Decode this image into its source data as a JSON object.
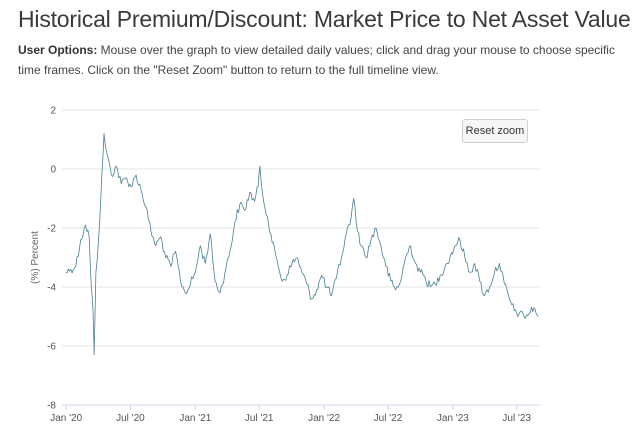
{
  "header": {
    "title": "Historical Premium/Discount: Market Price to Net Asset Value",
    "options_label": "User Options:",
    "options_text": " Mouse over the graph to view detailed daily values; click and drag your mouse to choose specific time frames. Click on the \"Reset Zoom\" button to return to the full timeline view."
  },
  "chart": {
    "reset_label": "Reset zoom",
    "line_color": "#4a7f8f"
  },
  "chart_data": {
    "type": "line",
    "title": "",
    "xlabel": "",
    "ylabel": "(%) Percent",
    "ylim": [
      -8,
      2
    ],
    "yticks": [
      2,
      0,
      -2,
      -4,
      -6,
      -8
    ],
    "xlim": [
      "2019-12-20",
      "2023-09-05"
    ],
    "xticks": [
      {
        "date": "2020-01-01",
        "label": "Jan '20"
      },
      {
        "date": "2020-07-01",
        "label": "Jul '20"
      },
      {
        "date": "2021-01-01",
        "label": "Jan '21"
      },
      {
        "date": "2021-07-01",
        "label": "Jul '21"
      },
      {
        "date": "2022-01-01",
        "label": "Jan '22"
      },
      {
        "date": "2022-07-01",
        "label": "Jul '22"
      },
      {
        "date": "2023-01-01",
        "label": "Jan '23"
      },
      {
        "date": "2023-07-01",
        "label": "Jul '23"
      }
    ],
    "grid": true,
    "legend": "none",
    "series": [
      {
        "points": [
          [
            "2019-12-31",
            -3.5
          ],
          [
            "2020-01-14",
            -3.4
          ],
          [
            "2020-01-28",
            -3.3
          ],
          [
            "2020-02-11",
            -2.4
          ],
          [
            "2020-02-25",
            -1.9
          ],
          [
            "2020-03-06",
            -2.3
          ],
          [
            "2020-03-12",
            -4.0
          ],
          [
            "2020-03-17",
            -4.8
          ],
          [
            "2020-03-20",
            -6.3
          ],
          [
            "2020-03-25",
            -3.5
          ],
          [
            "2020-04-01",
            -2.5
          ],
          [
            "2020-04-08",
            -1.0
          ],
          [
            "2020-04-14",
            0.4
          ],
          [
            "2020-04-17",
            1.2
          ],
          [
            "2020-04-24",
            0.6
          ],
          [
            "2020-05-08",
            -0.2
          ],
          [
            "2020-05-22",
            0.1
          ],
          [
            "2020-06-05",
            -0.5
          ],
          [
            "2020-06-19",
            -0.3
          ],
          [
            "2020-07-03",
            -0.6
          ],
          [
            "2020-07-17",
            -0.2
          ],
          [
            "2020-07-31",
            -0.7
          ],
          [
            "2020-08-14",
            -1.3
          ],
          [
            "2020-08-28",
            -2.1
          ],
          [
            "2020-09-11",
            -2.6
          ],
          [
            "2020-09-25",
            -2.3
          ],
          [
            "2020-10-09",
            -3.0
          ],
          [
            "2020-10-23",
            -3.3
          ],
          [
            "2020-11-06",
            -2.8
          ],
          [
            "2020-11-20",
            -3.8
          ],
          [
            "2020-12-04",
            -4.2
          ],
          [
            "2020-12-18",
            -3.9
          ],
          [
            "2021-01-01",
            -3.5
          ],
          [
            "2021-01-15",
            -2.6
          ],
          [
            "2021-01-29",
            -3.2
          ],
          [
            "2021-02-12",
            -2.2
          ],
          [
            "2021-02-26",
            -3.8
          ],
          [
            "2021-03-12",
            -4.2
          ],
          [
            "2021-03-26",
            -3.5
          ],
          [
            "2021-04-09",
            -2.8
          ],
          [
            "2021-04-23",
            -1.8
          ],
          [
            "2021-05-07",
            -1.2
          ],
          [
            "2021-05-21",
            -1.4
          ],
          [
            "2021-06-04",
            -0.8
          ],
          [
            "2021-06-18",
            -1.1
          ],
          [
            "2021-06-28",
            -0.6
          ],
          [
            "2021-07-03",
            0.1
          ],
          [
            "2021-07-10",
            -0.8
          ],
          [
            "2021-07-24",
            -1.6
          ],
          [
            "2021-08-07",
            -2.5
          ],
          [
            "2021-08-21",
            -3.1
          ],
          [
            "2021-09-04",
            -3.8
          ],
          [
            "2021-09-18",
            -3.6
          ],
          [
            "2021-10-02",
            -3.2
          ],
          [
            "2021-10-16",
            -3.0
          ],
          [
            "2021-10-30",
            -3.5
          ],
          [
            "2021-11-13",
            -3.9
          ],
          [
            "2021-11-27",
            -4.4
          ],
          [
            "2021-12-11",
            -4.1
          ],
          [
            "2021-12-25",
            -3.6
          ],
          [
            "2022-01-08",
            -4.0
          ],
          [
            "2022-01-22",
            -4.3
          ],
          [
            "2022-02-05",
            -3.7
          ],
          [
            "2022-02-19",
            -3.0
          ],
          [
            "2022-03-05",
            -2.2
          ],
          [
            "2022-03-19",
            -1.6
          ],
          [
            "2022-03-26",
            -1.0
          ],
          [
            "2022-04-02",
            -1.8
          ],
          [
            "2022-04-16",
            -2.6
          ],
          [
            "2022-04-30",
            -3.0
          ],
          [
            "2022-05-14",
            -2.4
          ],
          [
            "2022-05-28",
            -2.0
          ],
          [
            "2022-06-11",
            -2.6
          ],
          [
            "2022-06-25",
            -3.3
          ],
          [
            "2022-07-09",
            -3.8
          ],
          [
            "2022-07-23",
            -4.1
          ],
          [
            "2022-08-06",
            -3.8
          ],
          [
            "2022-08-20",
            -3.0
          ],
          [
            "2022-09-03",
            -2.6
          ],
          [
            "2022-09-17",
            -3.2
          ],
          [
            "2022-10-01",
            -3.5
          ],
          [
            "2022-10-15",
            -3.7
          ],
          [
            "2022-10-29",
            -4.0
          ],
          [
            "2022-11-12",
            -3.9
          ],
          [
            "2022-11-26",
            -3.6
          ],
          [
            "2022-12-10",
            -3.3
          ],
          [
            "2022-12-24",
            -3.0
          ],
          [
            "2023-01-07",
            -2.6
          ],
          [
            "2023-01-21",
            -2.4
          ],
          [
            "2023-02-04",
            -3.0
          ],
          [
            "2023-02-18",
            -3.5
          ],
          [
            "2023-03-04",
            -3.2
          ],
          [
            "2023-03-18",
            -3.8
          ],
          [
            "2023-04-01",
            -4.3
          ],
          [
            "2023-04-15",
            -4.0
          ],
          [
            "2023-04-29",
            -3.5
          ],
          [
            "2023-05-13",
            -3.2
          ],
          [
            "2023-05-27",
            -3.9
          ],
          [
            "2023-06-10",
            -4.4
          ],
          [
            "2023-06-24",
            -4.8
          ],
          [
            "2023-07-08",
            -4.9
          ],
          [
            "2023-07-22",
            -5.0
          ],
          [
            "2023-08-05",
            -4.9
          ],
          [
            "2023-08-19",
            -4.7
          ],
          [
            "2023-08-31",
            -5.0
          ]
        ]
      }
    ]
  }
}
